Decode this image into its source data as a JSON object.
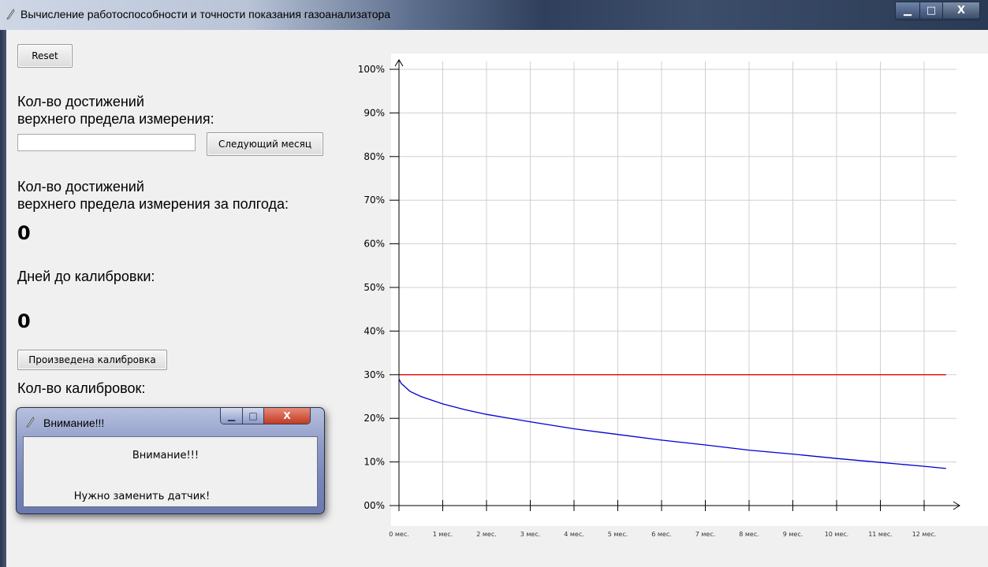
{
  "window": {
    "title": "Вычисление работоспособности и точности показания газоанализатора",
    "min_glyph": "▁",
    "max_glyph": "□",
    "close_glyph": "X"
  },
  "left_panel": {
    "reset_label": "Reset",
    "upper_limit_label_line1": "Кол-во достижений",
    "upper_limit_label_line2": "верхнего предела измерения:",
    "input_value": "",
    "next_month_label": "Следующий месяц",
    "half_year_label_line1": "Кол-во достижений",
    "half_year_label_line2": "верхнего предела измерения за полгода:",
    "half_year_value": "0",
    "days_label": "Дней до калибровки:",
    "days_value": "0",
    "calibration_button_label": "Произведена калибровка",
    "calibrations_label": "Кол-во калибровок:"
  },
  "dialog": {
    "title": "Внимание!!!",
    "heading": "Внимание!!!",
    "message": "Нужно заменить датчик!",
    "min_glyph": "▁",
    "max_glyph": "□",
    "close_glyph": "X"
  },
  "chart_data": {
    "type": "line",
    "y_ticks": [
      "00%",
      "10%",
      "20%",
      "30%",
      "40%",
      "50%",
      "60%",
      "70%",
      "80%",
      "90%",
      "100%"
    ],
    "x_ticks": [
      "0 мес.",
      "1 мес.",
      "2 мес.",
      "3 мес.",
      "4 мес.",
      "5 мес.",
      "6 мес.",
      "7 мес.",
      "8 мес.",
      "9 мес.",
      "10 мес.",
      "11 мес.",
      "12 мес."
    ],
    "xlim": [
      0,
      12.5
    ],
    "ylim": [
      0,
      100
    ],
    "grid": true,
    "series": [
      {
        "color": "#e00000",
        "x": [
          0,
          12.5
        ],
        "y": [
          30,
          30
        ]
      },
      {
        "color": "#0000cc",
        "x": [
          0,
          0.05,
          0.25,
          0.5,
          1,
          1.5,
          2,
          3,
          4,
          5,
          6,
          7,
          8,
          9,
          10,
          11,
          12,
          12.5
        ],
        "y": [
          29,
          28,
          26.2,
          25,
          23.3,
          22,
          20.9,
          19.2,
          17.6,
          16.3,
          15,
          13.9,
          12.7,
          11.8,
          10.8,
          9.9,
          9,
          8.5
        ]
      }
    ]
  }
}
